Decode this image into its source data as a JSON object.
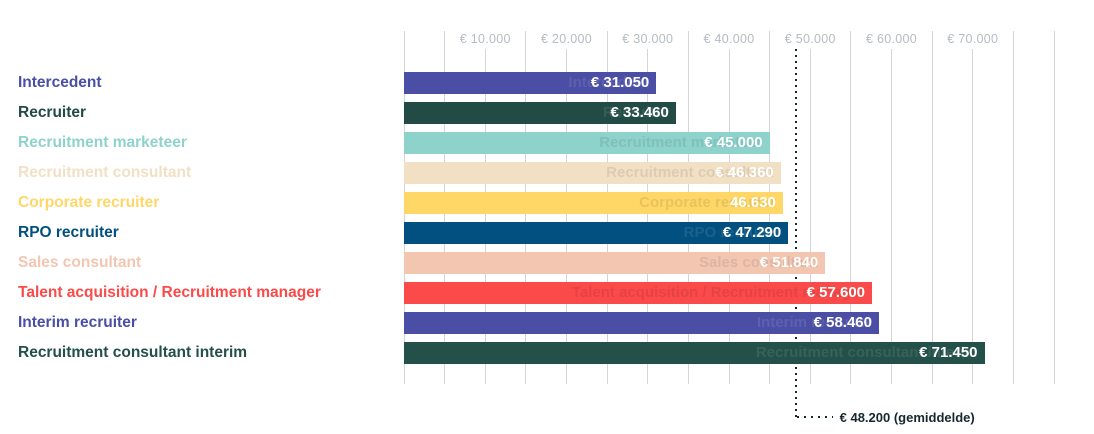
{
  "chart_data": {
    "type": "bar",
    "orientation": "horizontal",
    "axis_position": "top",
    "categories": [
      "Intercedent",
      "Recruiter",
      "Recruitment marketeer",
      "Recruitment consultant",
      "Corporate recruiter",
      "RPO recruiter",
      "Sales consultant",
      "Talent acquisition / Recruitment manager",
      "Interim recruiter",
      "Recruitment consultant interim"
    ],
    "values": [
      31050,
      33460,
      45000,
      46360,
      46630,
      47290,
      51840,
      57600,
      58460,
      71450
    ],
    "value_labels": [
      "€ 31.050",
      "€ 33.460",
      "€ 45.000",
      "€ 46.360",
      "46.630",
      "€ 47.290",
      "€ 51.840",
      "€ 57.600",
      "€ 58.460",
      "€ 71.450"
    ],
    "colors": [
      "#4a4fa5",
      "#224b46",
      "#8ed2cc",
      "#f2e0c4",
      "#fed767",
      "#01507f",
      "#f3c6b1",
      "#fb4a4a",
      "#4a4fa5",
      "#235049"
    ],
    "xlim": [
      0,
      80000
    ],
    "grid_step": 5000,
    "grid": true,
    "legend": false,
    "ticks": [
      {
        "value": 10000,
        "label": "€ 10.000"
      },
      {
        "value": 20000,
        "label": "€ 20.000"
      },
      {
        "value": 30000,
        "label": "€ 30.000"
      },
      {
        "value": 40000,
        "label": "€ 40.000"
      },
      {
        "value": 50000,
        "label": "€ 50.000"
      },
      {
        "value": 60000,
        "label": "€ 60.000"
      },
      {
        "value": 70000,
        "label": "€ 70.000"
      }
    ],
    "average": {
      "value": 48200,
      "label": "€ 48.200 (gemiddelde)"
    }
  },
  "styles": {
    "background": "#ffffff",
    "grid_color": "#d5d5d5",
    "tick_label_color": "#b5bcc4",
    "average_color": "#16282e",
    "value_text_color": "#ffffff"
  }
}
